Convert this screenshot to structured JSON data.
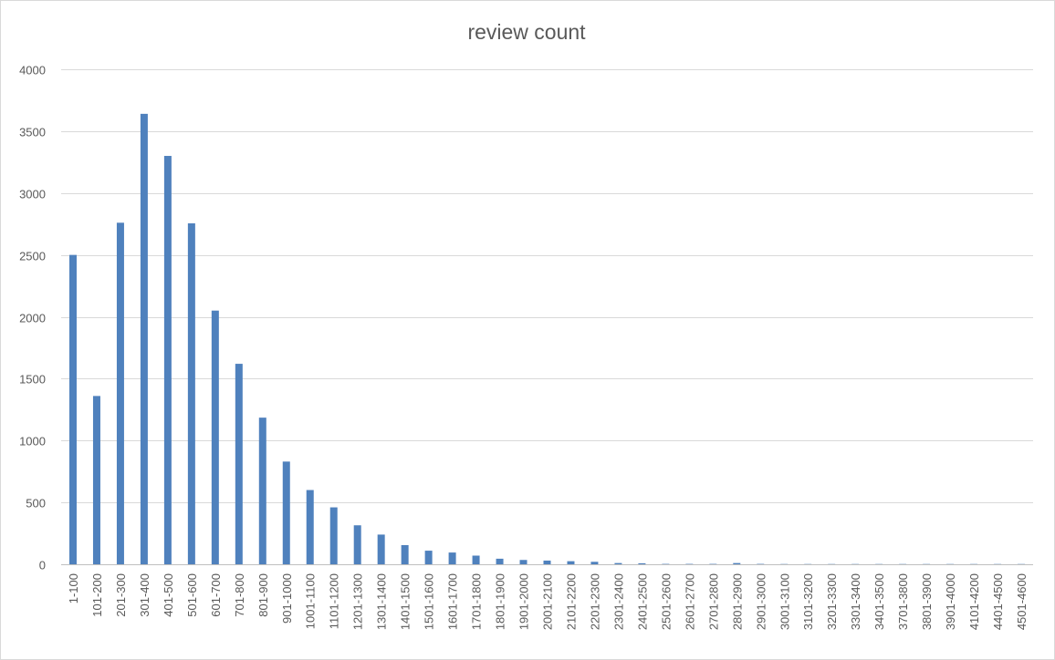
{
  "chart_data": {
    "type": "bar",
    "title": "review count",
    "xlabel": "",
    "ylabel": "",
    "ylim": [
      0,
      4000
    ],
    "yticks": [
      0,
      500,
      1000,
      1500,
      2000,
      2500,
      3000,
      3500,
      4000
    ],
    "grid": true,
    "legend": "none",
    "bar_color": "#4f81bd",
    "categories": [
      "1-100",
      "101-200",
      "201-300",
      "301-400",
      "401-500",
      "501-600",
      "601-700",
      "701-800",
      "801-900",
      "901-1000",
      "1001-1100",
      "1101-1200",
      "1201-1300",
      "1301-1400",
      "1401-1500",
      "1501-1600",
      "1601-1700",
      "1701-1800",
      "1801-1900",
      "1901-2000",
      "2001-2100",
      "2101-2200",
      "2201-2300",
      "2301-2400",
      "2401-2500",
      "2501-2600",
      "2601-2700",
      "2701-2800",
      "2801-2900",
      "2901-3000",
      "3001-3100",
      "3101-3200",
      "3201-3300",
      "3301-3400",
      "3401-3500",
      "3701-3800",
      "3801-3900",
      "3901-4000",
      "4101-4200",
      "4401-4500",
      "4501-4600"
    ],
    "values": [
      2500,
      1360,
      2760,
      3640,
      3300,
      2755,
      2050,
      1620,
      1185,
      830,
      600,
      460,
      315,
      240,
      155,
      110,
      95,
      70,
      45,
      35,
      30,
      25,
      20,
      10,
      8,
      3,
      3,
      3,
      10,
      3,
      2,
      2,
      2,
      2,
      2,
      2,
      2,
      2,
      2,
      2,
      2
    ]
  }
}
